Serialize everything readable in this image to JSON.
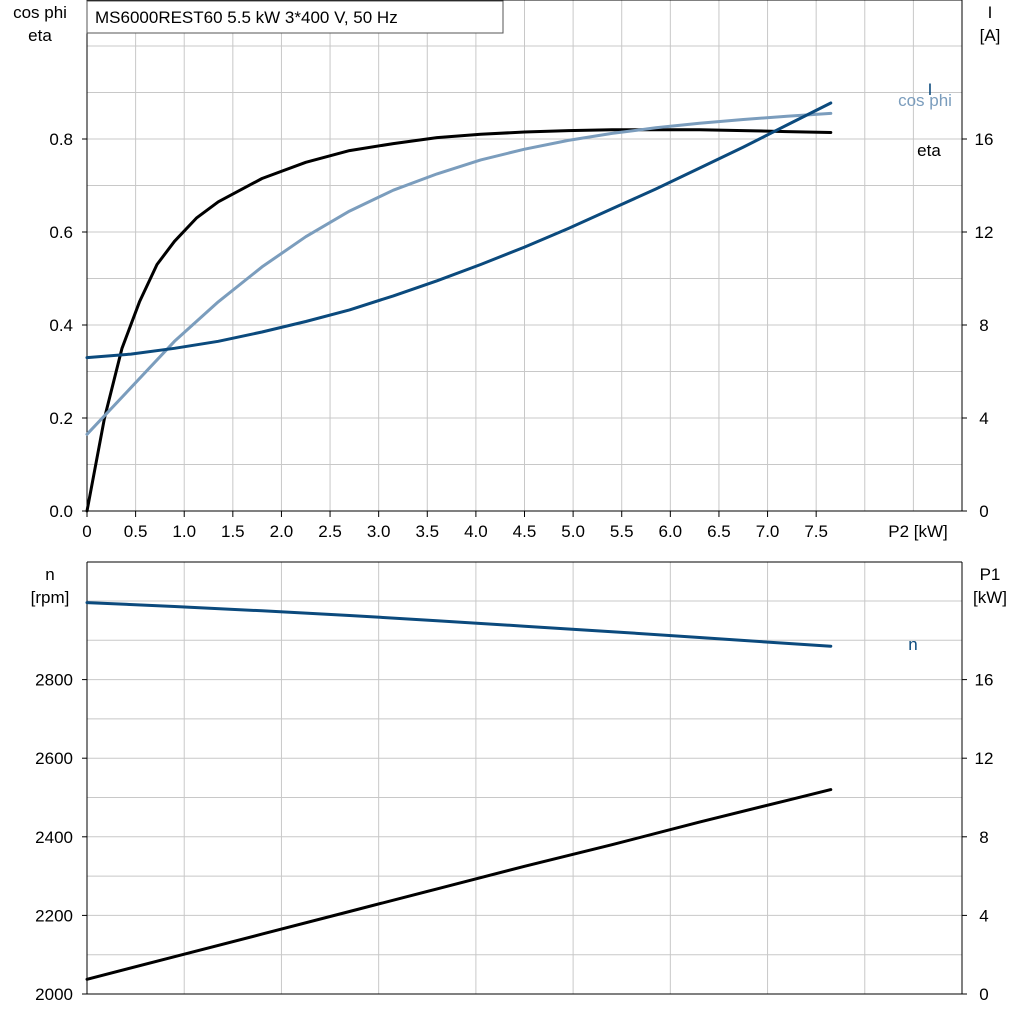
{
  "title": "MS6000REST60   5.5 kW   3*400 V, 50 Hz",
  "colors": {
    "eta": "#000000",
    "cosphi": "#7b9dbd",
    "current": "#0b4a7d",
    "speed": "#0b4a7d",
    "p1": "#000000",
    "grid": "#c8c8c8"
  },
  "chart_data": [
    {
      "type": "line",
      "title": "MS6000REST60   5.5 kW   3*400 V, 50 Hz",
      "xlabel": "P2 [kW]",
      "ylabel_left": [
        "cos phi",
        "eta"
      ],
      "ylabel_right": [
        "I",
        "[A]"
      ],
      "xlim": [
        0,
        8.5
      ],
      "ylim_left": [
        0,
        1.0
      ],
      "ylim_right": [
        0,
        20
      ],
      "x_ticks": [
        "0",
        "0.5",
        "1.0",
        "1.5",
        "2.0",
        "2.5",
        "3.0",
        "3.5",
        "4.0",
        "4.5",
        "5.0",
        "5.5",
        "6.0",
        "6.5",
        "7.0",
        "7.5"
      ],
      "y_ticks_left": [
        "0.0",
        "0.2",
        "0.4",
        "0.6",
        "0.8"
      ],
      "y_ticks_right": [
        "0",
        "4",
        "8",
        "12",
        "16"
      ],
      "grid": true,
      "series": [
        {
          "name": "eta",
          "axis": "left",
          "x": [
            0,
            0.2,
            0.4,
            0.6,
            0.8,
            1.0,
            1.25,
            1.5,
            2.0,
            2.5,
            3.0,
            3.5,
            4.0,
            4.5,
            5.0,
            5.5,
            6.0,
            6.5,
            7.0,
            7.5,
            8.0,
            8.5
          ],
          "y": [
            0.0,
            0.2,
            0.35,
            0.45,
            0.53,
            0.58,
            0.63,
            0.665,
            0.715,
            0.75,
            0.775,
            0.79,
            0.803,
            0.81,
            0.815,
            0.818,
            0.82,
            0.82,
            0.82,
            0.818,
            0.816,
            0.814
          ]
        },
        {
          "name": "cos phi",
          "axis": "left",
          "x": [
            0,
            0.5,
            1.0,
            1.5,
            2.0,
            2.5,
            3.0,
            3.5,
            4.0,
            4.5,
            5.0,
            5.5,
            6.0,
            6.5,
            7.0,
            7.5,
            8.0,
            8.5
          ],
          "y": [
            0.165,
            0.265,
            0.365,
            0.45,
            0.525,
            0.59,
            0.645,
            0.69,
            0.725,
            0.755,
            0.778,
            0.797,
            0.812,
            0.824,
            0.834,
            0.842,
            0.849,
            0.855
          ]
        },
        {
          "name": "I",
          "axis": "right",
          "x": [
            0,
            0.5,
            1.0,
            1.5,
            2.0,
            2.5,
            3.0,
            3.5,
            4.0,
            4.5,
            5.0,
            5.5,
            6.0,
            6.5,
            7.0,
            7.5,
            8.0,
            8.5
          ],
          "y": [
            6.6,
            6.75,
            7.0,
            7.3,
            7.7,
            8.15,
            8.65,
            9.25,
            9.9,
            10.6,
            11.35,
            12.15,
            13.0,
            13.85,
            14.75,
            15.65,
            16.6,
            17.55
          ]
        }
      ]
    },
    {
      "type": "line",
      "xlabel": "",
      "ylabel_left": [
        "n",
        "[rpm]"
      ],
      "ylabel_right": [
        "P1",
        "[kW]"
      ],
      "xlim": [
        0,
        8.5
      ],
      "ylim_left": [
        2000,
        3000
      ],
      "ylim_right": [
        0,
        20
      ],
      "y_ticks_left": [
        "2000",
        "2200",
        "2400",
        "2600",
        "2800"
      ],
      "y_ticks_right": [
        "0",
        "4",
        "8",
        "12",
        "16"
      ],
      "grid": true,
      "series": [
        {
          "name": "n",
          "axis": "left",
          "x": [
            0,
            1.0,
            2.0,
            3.0,
            4.0,
            5.0,
            6.0,
            7.0,
            8.0,
            8.5
          ],
          "y": [
            2996,
            2986,
            2975,
            2963,
            2950,
            2936,
            2922,
            2907,
            2892,
            2885
          ]
        },
        {
          "name": "",
          "axis": "right",
          "x": [
            0,
            1.0,
            2.0,
            3.0,
            4.0,
            5.0,
            6.0,
            7.0,
            8.0,
            8.5
          ],
          "y": [
            0.75,
            1.9,
            3.05,
            4.2,
            5.35,
            6.5,
            7.6,
            8.75,
            9.85,
            10.4
          ]
        }
      ]
    }
  ]
}
